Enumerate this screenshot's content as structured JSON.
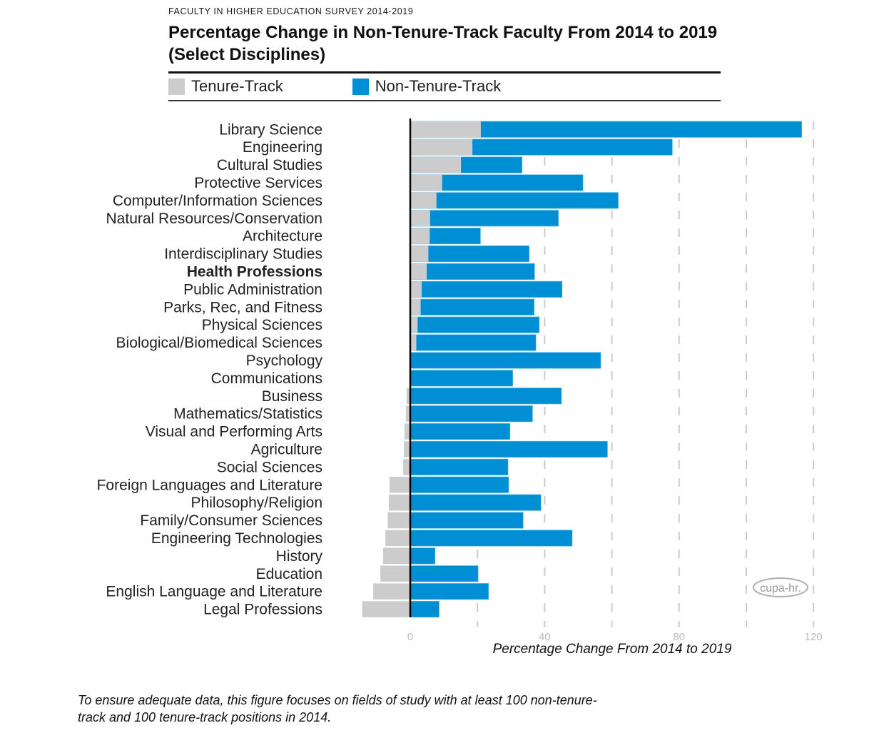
{
  "header": {
    "kicker": "FACULTY IN HIGHER EDUCATION SURVEY 2014-2019",
    "title": "Percentage Change in Non-Tenure-Track Faculty From 2014 to 2019 (Select Disciplines)"
  },
  "colors": {
    "tenure_track": "#cccccc",
    "non_tenure_track": "#008fd5",
    "zero_line": "#000000",
    "grid": "#cccccc",
    "tick_label": "#bbbbbb",
    "logo": "#aaaaaa"
  },
  "legend": [
    {
      "label": "Tenure-Track",
      "color": "#cccccc"
    },
    {
      "label": "Non-Tenure-Track",
      "color": "#008fd5"
    }
  ],
  "logo_text": "cupa-hr.",
  "footnote": "To ensure adequate data, this figure focuses on fields of study with at least 100 non-tenure-track and 100 tenure-track positions in 2014.",
  "chart_data": {
    "type": "bar",
    "orientation": "horizontal",
    "title": "Percentage Change in Non-Tenure-Track Faculty From 2014 to 2019 (Select Disciplines)",
    "subtitle": "FACULTY IN HIGHER EDUCATION SURVEY 2014-2019",
    "xlabel": "Percentage Change From 2014 to 2019",
    "ylabel": "",
    "xlim": [
      -15,
      122
    ],
    "xticks": [
      0,
      40,
      80,
      120
    ],
    "gridlines": [
      20,
      40,
      60,
      80,
      100,
      120
    ],
    "grid": true,
    "legend_position": "top",
    "highlighted_category": "Health Professions",
    "categories": [
      "Library Science",
      "Engineering",
      "Cultural Studies",
      "Protective Services",
      "Computer/Information Sciences",
      "Natural Resources/Conservation",
      "Architecture",
      "Interdisciplinary Studies",
      "Health Professions",
      "Public Administration",
      "Parks, Rec, and Fitness",
      "Physical Sciences",
      "Biological/Biomedical Sciences",
      "Psychology",
      "Communications",
      "Business",
      "Mathematics/Statistics",
      "Visual and Performing Arts",
      "Agriculture",
      "Social Sciences",
      "Foreign Languages and Literature",
      "Philosophy/Religion",
      "Family/Consumer Sciences",
      "Engineering Technologies",
      "History",
      "Education",
      "English Language and Literature",
      "Legal Professions"
    ],
    "series": [
      {
        "name": "Non-Tenure-Track",
        "color": "#008fd5",
        "values": [
          116.5,
          78.0,
          33.3,
          51.4,
          61.9,
          44.1,
          20.9,
          35.4,
          37.0,
          45.2,
          36.9,
          38.4,
          37.4,
          56.7,
          30.5,
          45.0,
          36.4,
          29.7,
          58.7,
          29.1,
          29.3,
          38.9,
          33.6,
          48.2,
          7.4,
          20.2,
          23.3,
          8.6
        ]
      },
      {
        "name": "Tenure-Track",
        "color": "#cccccc",
        "values": [
          21.0,
          18.5,
          15.1,
          9.5,
          7.8,
          5.9,
          5.8,
          5.4,
          4.9,
          3.4,
          3.1,
          2.2,
          1.8,
          0.2,
          0.0,
          -1.1,
          -1.3,
          -1.7,
          -1.9,
          -2.1,
          -6.2,
          -6.4,
          -6.7,
          -7.4,
          -8.1,
          -8.9,
          -11.0,
          -14.3
        ]
      }
    ]
  }
}
